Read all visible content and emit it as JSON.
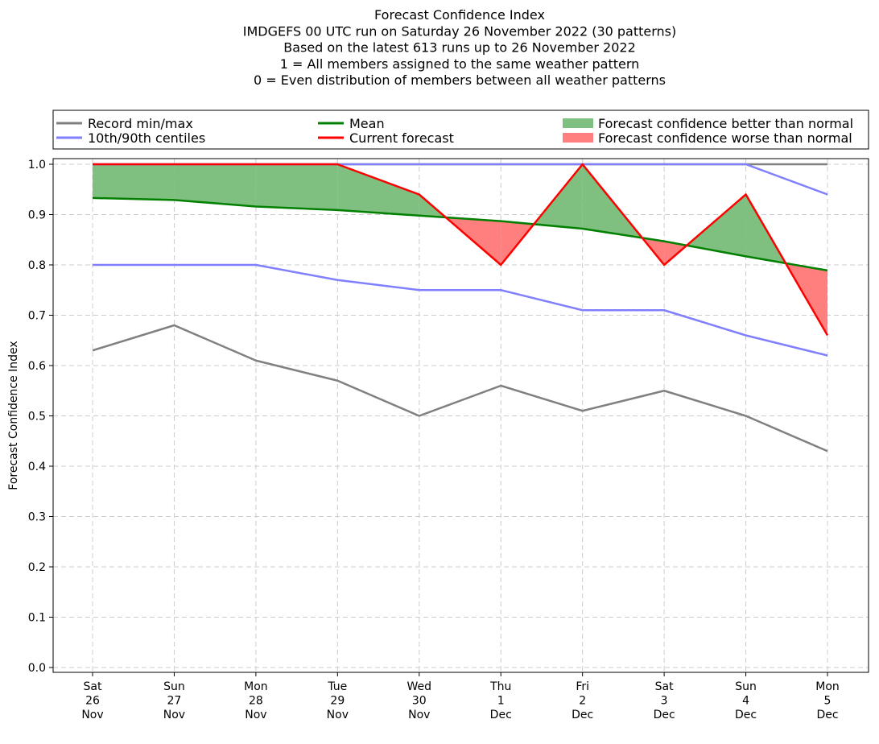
{
  "chart_data": {
    "type": "line",
    "title_lines": [
      "Forecast Confidence Index",
      "IMDGEFS 00 UTC run on Saturday 26 November 2022 (30 patterns)",
      "Based on the latest 613 runs up to 26 November 2022",
      "1 = All members assigned to the same weather pattern",
      "0 = Even distribution of members between all weather patterns"
    ],
    "ylabel": "Forecast Confidence Index",
    "xlabel": "",
    "ylim": [
      0,
      1
    ],
    "yticks": [
      0.0,
      0.1,
      0.2,
      0.3,
      0.4,
      0.5,
      0.6,
      0.7,
      0.8,
      0.9,
      1.0
    ],
    "grid": true,
    "legend_position": "top",
    "categories": [
      [
        "Sat",
        "26",
        "Nov"
      ],
      [
        "Sun",
        "27",
        "Nov"
      ],
      [
        "Mon",
        "28",
        "Nov"
      ],
      [
        "Tue",
        "29",
        "Nov"
      ],
      [
        "Wed",
        "30",
        "Nov"
      ],
      [
        "Thu",
        "1",
        "Dec"
      ],
      [
        "Fri",
        "2",
        "Dec"
      ],
      [
        "Sat",
        "3",
        "Dec"
      ],
      [
        "Sun",
        "4",
        "Dec"
      ],
      [
        "Mon",
        "5",
        "Dec"
      ]
    ],
    "series": [
      {
        "name": "Record min/max",
        "color": "#808080",
        "values": [
          0.63,
          0.68,
          0.61,
          0.57,
          0.5,
          0.56,
          0.51,
          0.55,
          0.5,
          0.43
        ]
      },
      {
        "name": "Record max",
        "color": "#808080",
        "values": [
          1.0,
          1.0,
          1.0,
          1.0,
          1.0,
          1.0,
          1.0,
          1.0,
          1.0,
          1.0
        ]
      },
      {
        "name": "10th/90th centiles",
        "color": "#7f7fff",
        "values": [
          0.8,
          0.8,
          0.8,
          0.77,
          0.75,
          0.75,
          0.71,
          0.71,
          0.66,
          0.62
        ]
      },
      {
        "name": "90th centile",
        "color": "#7f7fff",
        "values": [
          1.0,
          1.0,
          1.0,
          1.0,
          1.0,
          1.0,
          1.0,
          1.0,
          1.0,
          0.94
        ]
      },
      {
        "name": "Mean",
        "color": "#008000",
        "values": [
          0.933,
          0.929,
          0.916,
          0.909,
          0.898,
          0.887,
          0.872,
          0.847,
          0.817,
          0.789
        ]
      },
      {
        "name": "Current forecast",
        "color": "#ff0000",
        "values": [
          1.0,
          1.0,
          1.0,
          1.0,
          0.94,
          0.8,
          1.0,
          0.8,
          0.94,
          0.66
        ]
      }
    ],
    "fills": [
      {
        "name": "Forecast confidence better than normal",
        "color": "#7fbf7f"
      },
      {
        "name": "Forecast confidence worse than normal",
        "color": "#ff7f7f"
      }
    ],
    "legend": [
      {
        "label": "Record min/max",
        "kind": "line",
        "color": "#808080"
      },
      {
        "label": "10th/90th centiles",
        "kind": "line",
        "color": "#7f7fff"
      },
      {
        "label": "Mean",
        "kind": "line",
        "color": "#008000"
      },
      {
        "label": "Current forecast",
        "kind": "line",
        "color": "#ff0000"
      },
      {
        "label": "Forecast confidence better than normal",
        "kind": "patch",
        "color": "#7fbf7f"
      },
      {
        "label": "Forecast confidence worse than normal",
        "kind": "patch",
        "color": "#ff7f7f"
      }
    ]
  }
}
